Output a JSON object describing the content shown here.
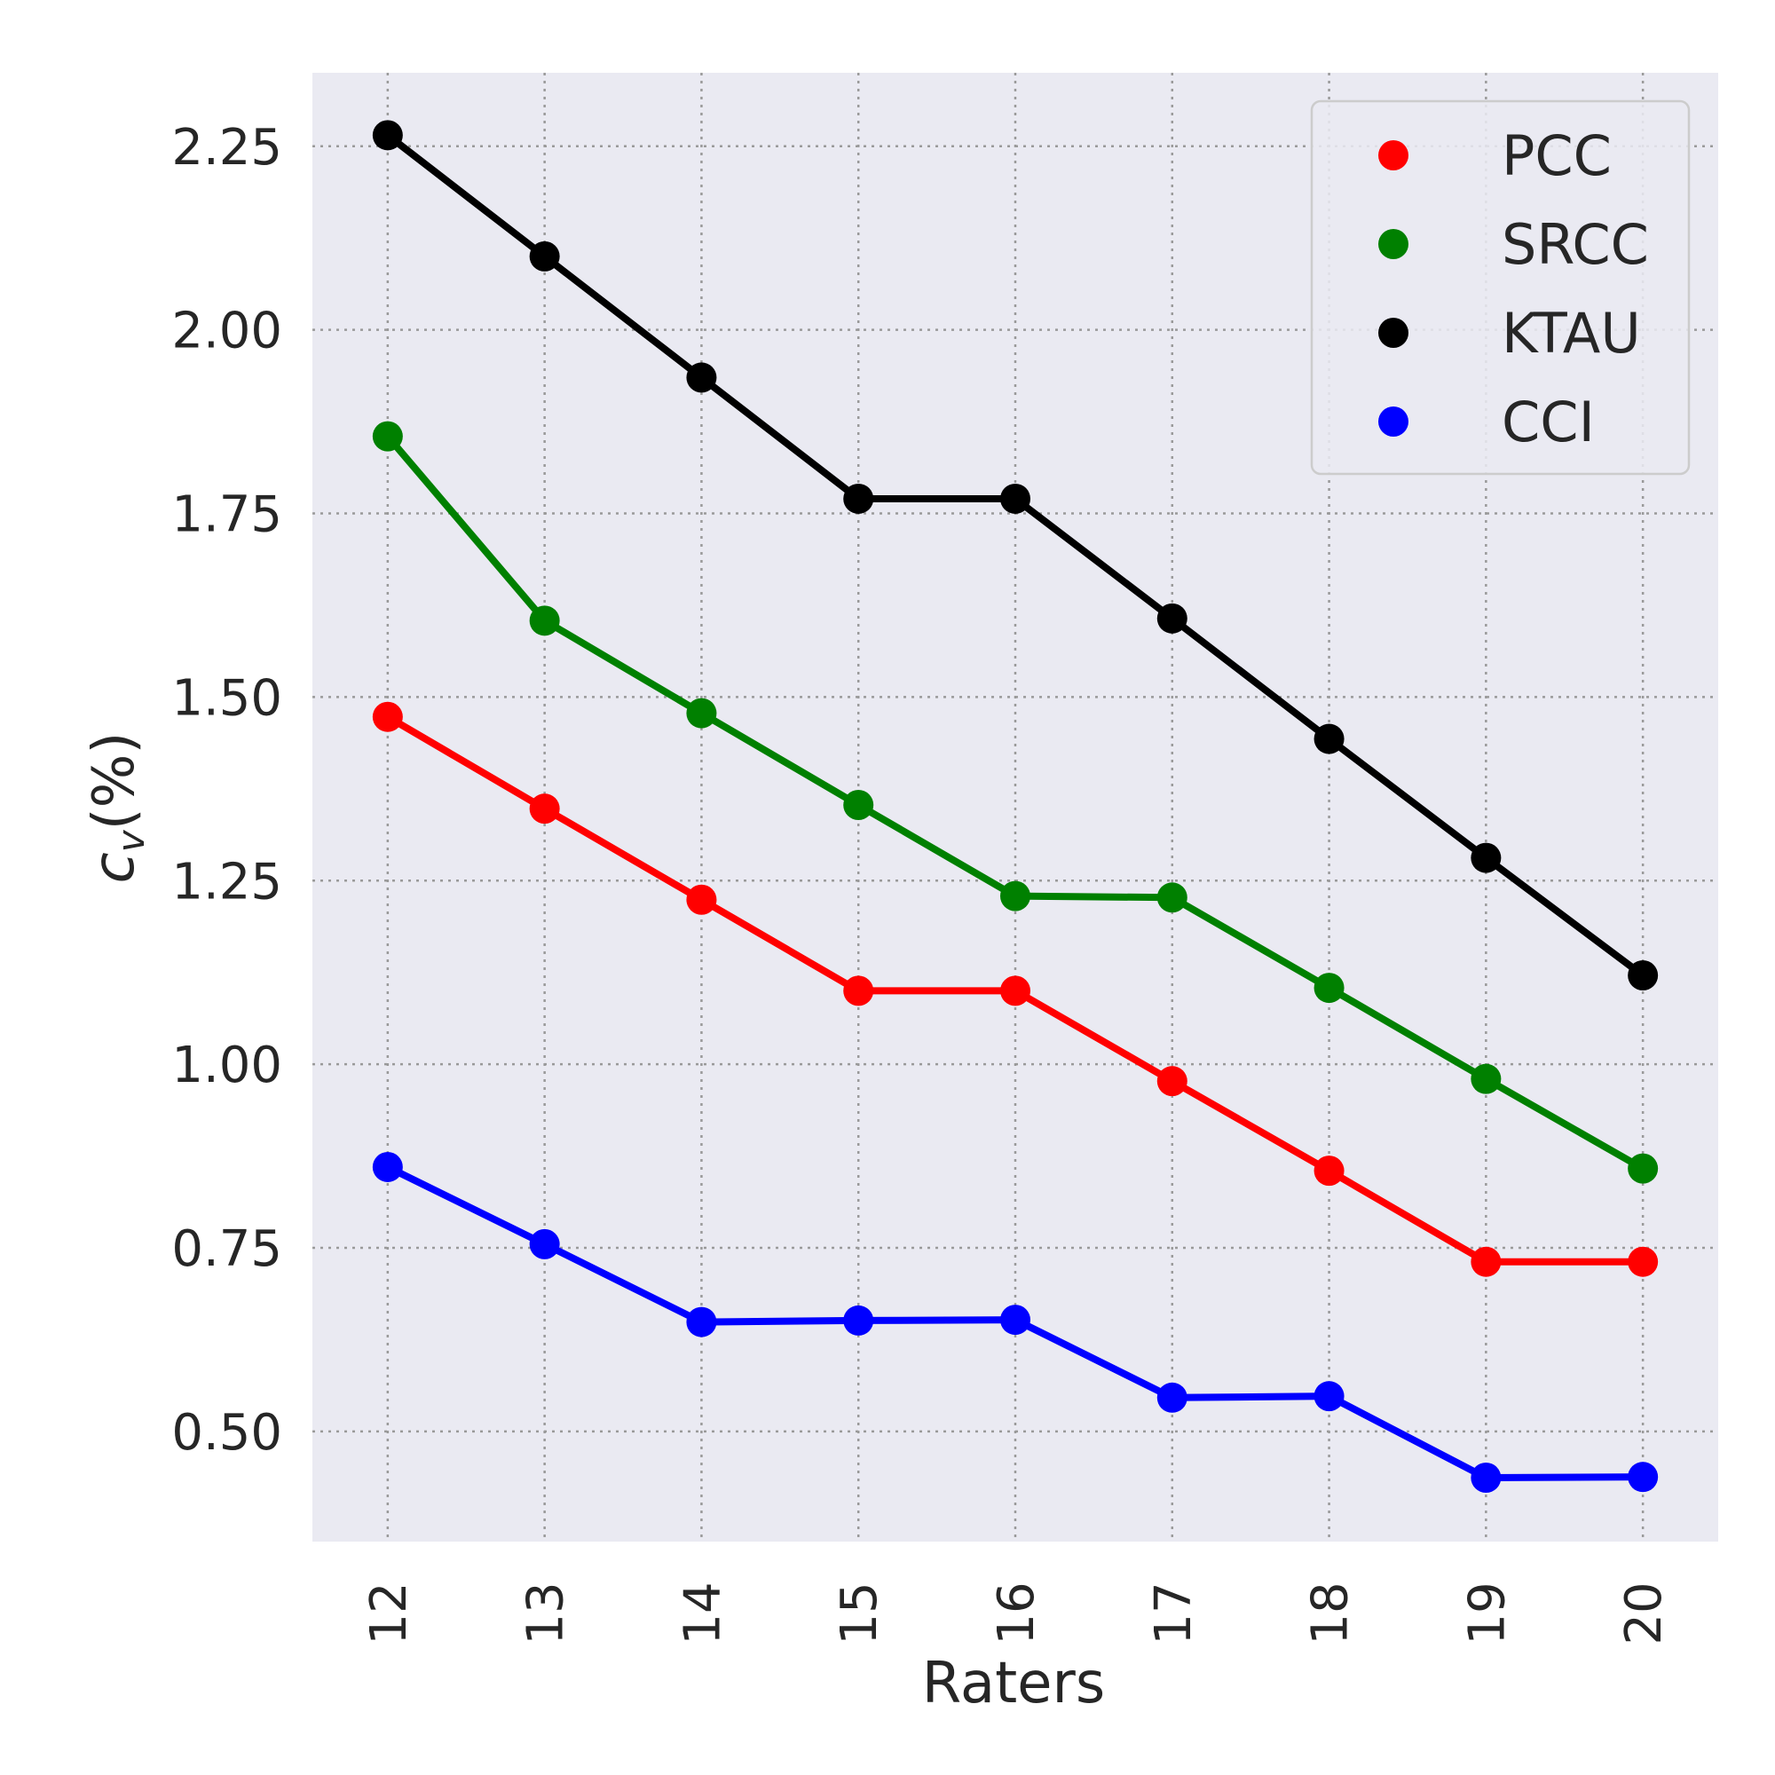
{
  "chart_data": {
    "type": "line",
    "x": [
      12,
      13,
      14,
      15,
      16,
      17,
      18,
      19,
      20
    ],
    "xlabel": "Raters",
    "ylabel_main": "c",
    "ylabel_sub": "v",
    "ylabel_suffix": "(%)",
    "ylim": [
      0.35,
      2.35
    ],
    "yticks": [
      "0.50",
      "0.75",
      "1.00",
      "1.25",
      "1.50",
      "1.75",
      "2.00",
      "2.25"
    ],
    "xticks": [
      "12",
      "13",
      "14",
      "15",
      "16",
      "17",
      "18",
      "19",
      "20"
    ],
    "grid": true,
    "legend_position": "top-right",
    "series": [
      {
        "name": "PCC",
        "color": "#ff0000",
        "values": [
          1.473,
          1.348,
          1.224,
          1.1,
          1.1,
          0.977,
          0.855,
          0.731,
          0.731
        ]
      },
      {
        "name": "SRCC",
        "color": "#008000",
        "values": [
          1.855,
          1.604,
          1.478,
          1.353,
          1.229,
          1.227,
          1.104,
          0.98,
          0.858
        ]
      },
      {
        "name": "KTAU",
        "color": "#000000",
        "values": [
          2.265,
          2.1,
          1.935,
          1.77,
          1.77,
          1.607,
          1.443,
          1.281,
          1.121
        ]
      },
      {
        "name": "CCI",
        "color": "#0000ff",
        "values": [
          0.86,
          0.755,
          0.649,
          0.651,
          0.652,
          0.546,
          0.548,
          0.437,
          0.438
        ]
      }
    ]
  }
}
